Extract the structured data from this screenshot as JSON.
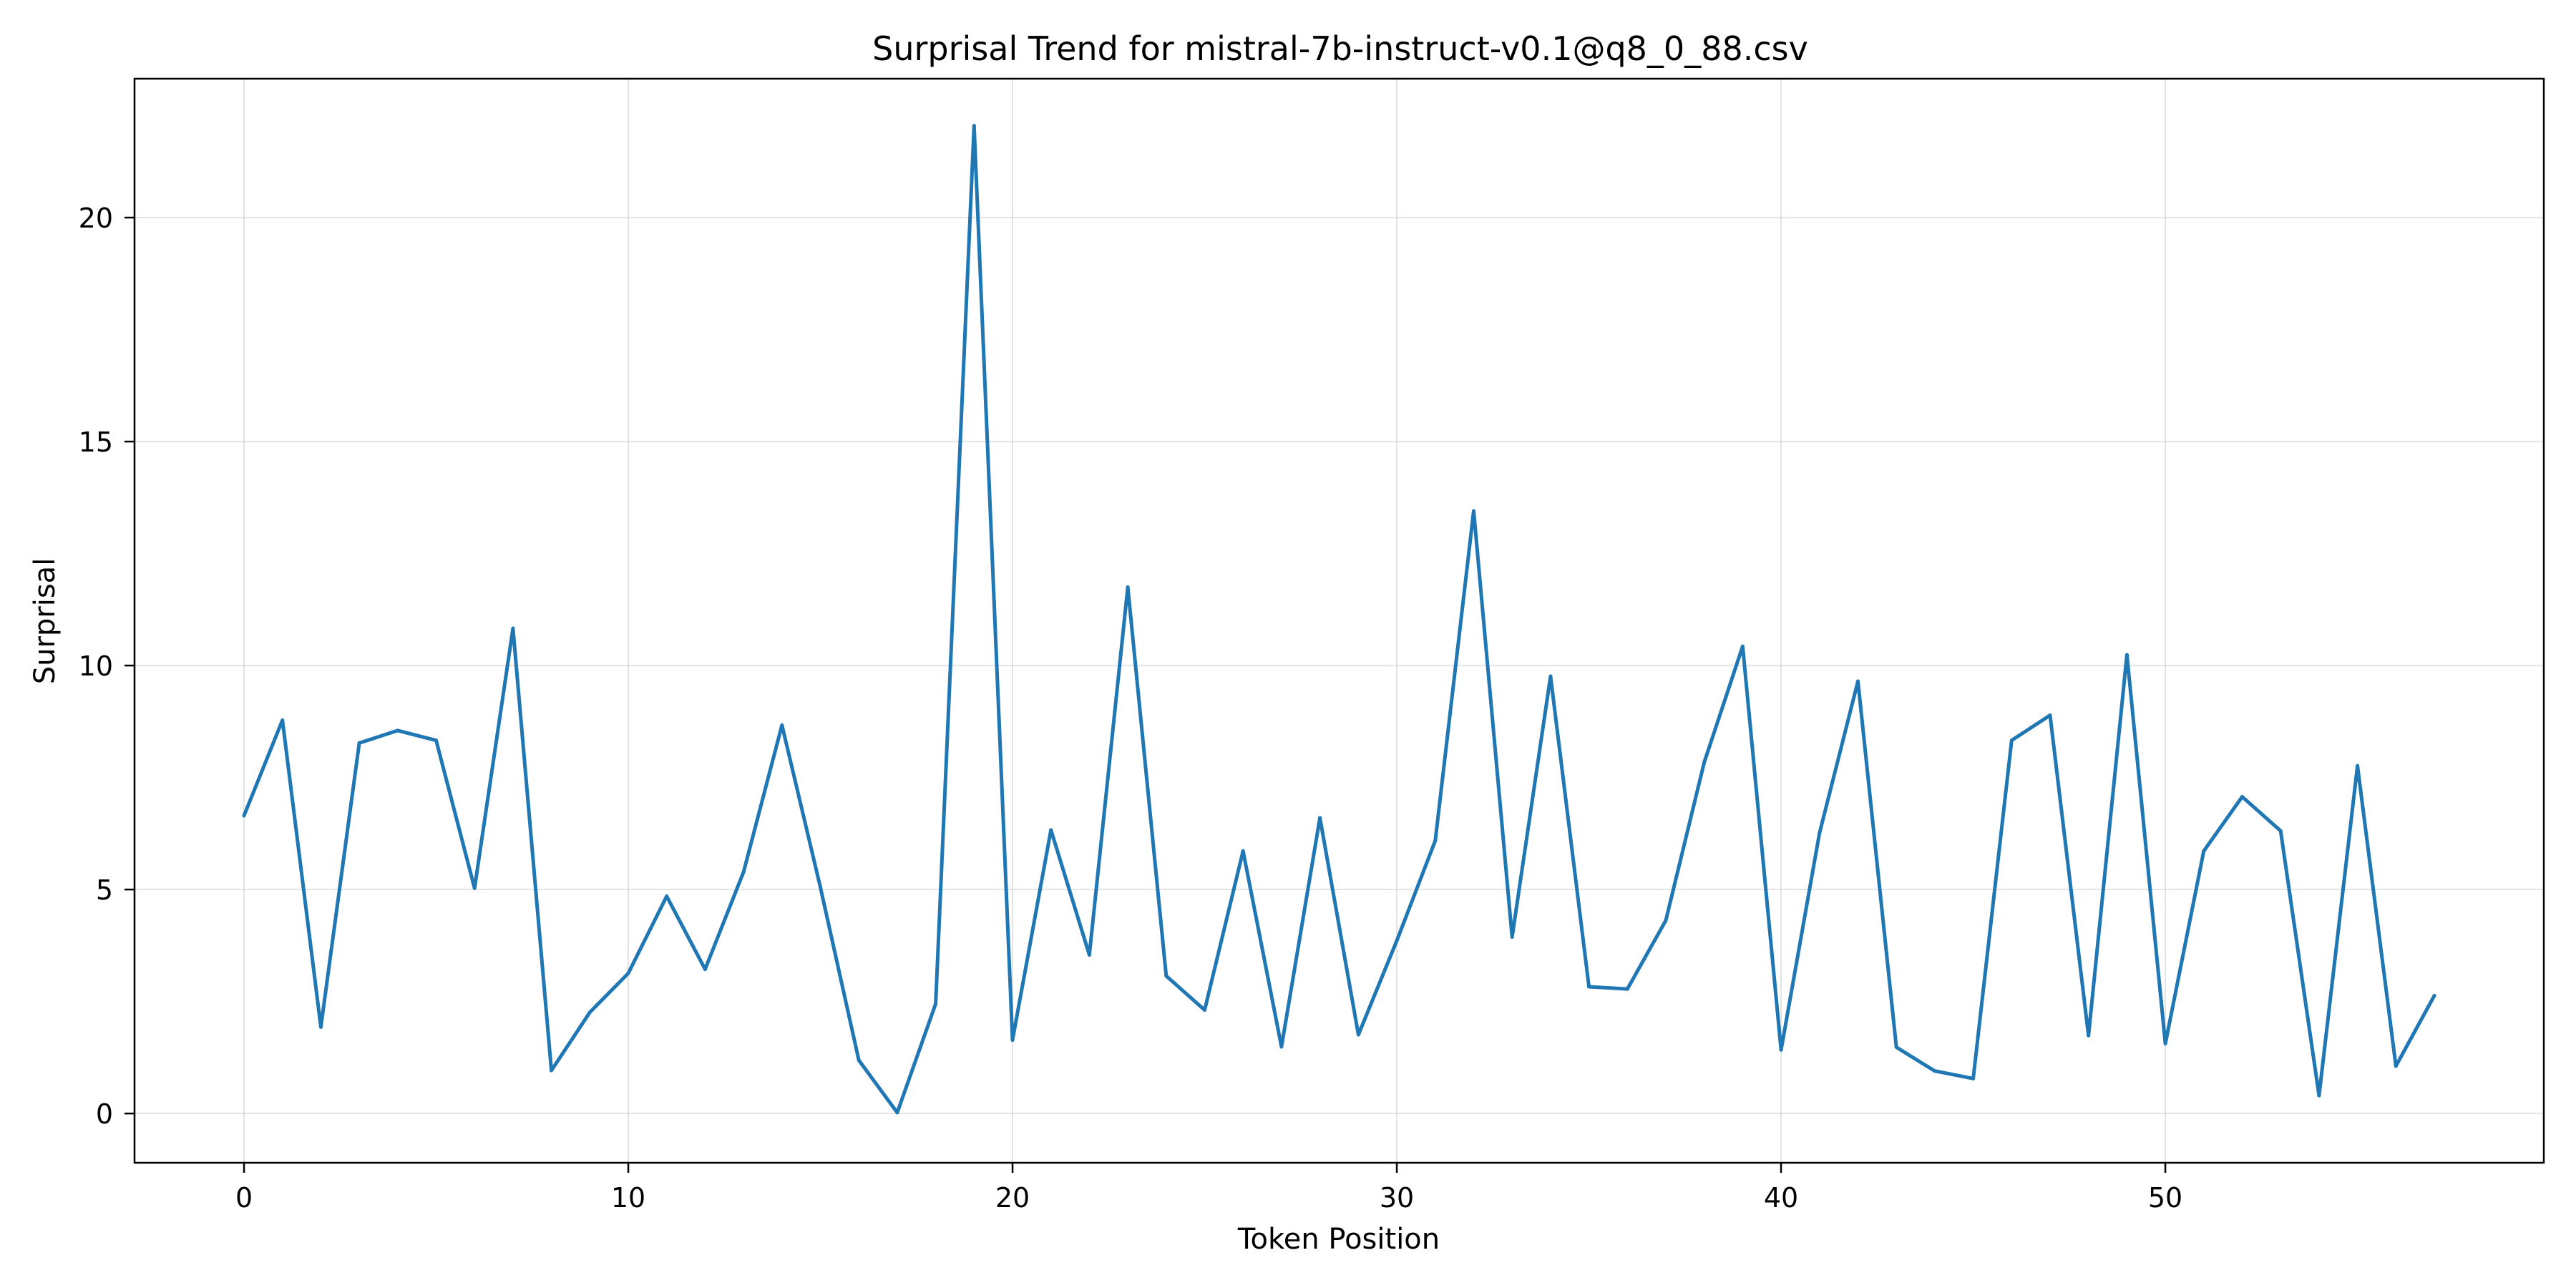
{
  "chart_data": {
    "type": "line",
    "title": "Surprisal Trend for mistral-7b-instruct-v0.1@q8_0_88.csv",
    "xlabel": "Token Position",
    "ylabel": "Surprisal",
    "xlim": [
      -2.85,
      59.85
    ],
    "ylim": [
      -1.1,
      23.1
    ],
    "xticks": [
      0,
      10,
      20,
      30,
      40,
      50
    ],
    "yticks": [
      0,
      5,
      10,
      15,
      20
    ],
    "grid": true,
    "series": [
      {
        "color": "#1f77b4",
        "x": [
          0,
          1,
          2,
          3,
          4,
          5,
          6,
          7,
          8,
          9,
          10,
          11,
          12,
          13,
          14,
          15,
          16,
          17,
          18,
          19,
          20,
          21,
          22,
          23,
          24,
          25,
          26,
          27,
          28,
          29,
          30,
          31,
          32,
          33,
          34,
          35,
          36,
          37,
          38,
          39,
          40,
          41,
          42,
          43,
          44,
          45,
          46,
          47,
          48,
          49,
          50,
          51,
          52,
          53,
          54,
          55,
          56,
          57
        ],
        "y": [
          6.65,
          8.78,
          1.93,
          8.27,
          8.55,
          8.33,
          5.03,
          10.83,
          0.96,
          2.26,
          3.13,
          4.85,
          3.22,
          5.39,
          8.67,
          5.05,
          1.19,
          0.02,
          2.45,
          22.05,
          1.64,
          6.33,
          3.54,
          11.75,
          3.07,
          2.31,
          5.86,
          1.49,
          6.6,
          1.76,
          3.86,
          6.09,
          13.45,
          3.94,
          9.76,
          2.83,
          2.78,
          4.31,
          7.84,
          10.43,
          1.42,
          6.26,
          9.65,
          1.48,
          0.95,
          0.78,
          8.33,
          8.89,
          1.74,
          10.24,
          1.56,
          5.86,
          7.07,
          6.31,
          0.4,
          7.76,
          1.06,
          2.63
        ]
      }
    ]
  }
}
